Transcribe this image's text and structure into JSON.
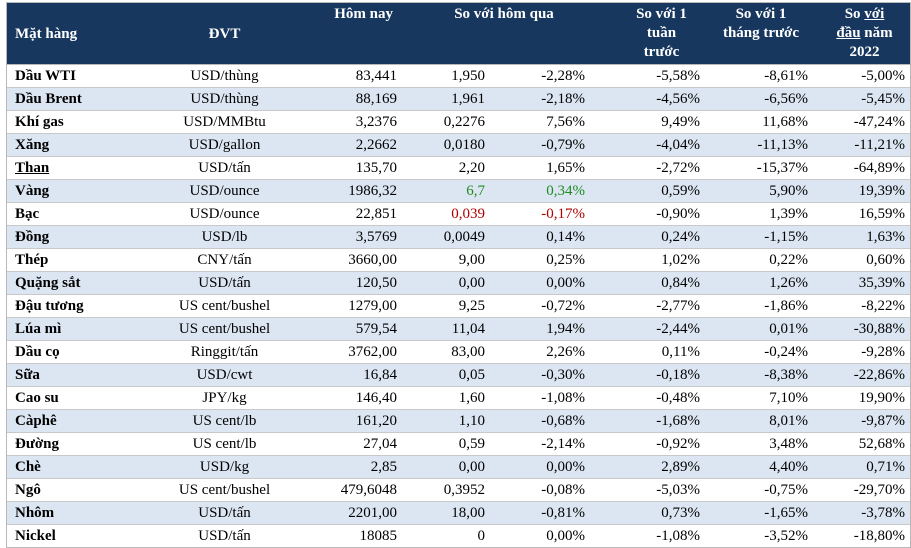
{
  "header": {
    "name": "Mặt hàng",
    "unit": "ĐVT",
    "today": "Hôm nay",
    "vs_prev": "So với hôm qua",
    "vs_week_line1": "So với 1",
    "vs_week_line2": "tuần",
    "vs_week_line3": "trước",
    "vs_month_line1": "So với 1",
    "vs_month_line2": "tháng trước",
    "vs_year_so": "So ",
    "vs_year_voi": "với",
    "vs_year_dau": "đầu",
    "vs_year_nam": " năm",
    "vs_year_line3": "2022"
  },
  "colors": {
    "header_bg": "#17375e",
    "alt_row_bg": "#dce6f2",
    "positive_highlight": "#1f8a1f",
    "negative_highlight": "#b00000"
  },
  "rows": [
    {
      "name": "Dầu WTI",
      "unit": "USD/thùng",
      "today": "83,441",
      "chg": "1,950",
      "pct": "-2,28%",
      "week": "-5,58%",
      "month": "-8,61%",
      "year": "-5,00%"
    },
    {
      "name": "Dầu Brent",
      "unit": "USD/thùng",
      "today": "88,169",
      "chg": "1,961",
      "pct": "-2,18%",
      "week": "-4,56%",
      "month": "-6,56%",
      "year": "-5,45%"
    },
    {
      "name": "Khí gas",
      "unit": "USD/MMBtu",
      "today": "3,2376",
      "chg": "0,2276",
      "pct": "7,56%",
      "week": "9,49%",
      "month": "11,68%",
      "year": "-47,24%"
    },
    {
      "name": "Xăng",
      "unit": "USD/gallon",
      "today": "2,2662",
      "chg": "0,0180",
      "pct": "-0,79%",
      "week": "-4,04%",
      "month": "-11,13%",
      "year": "-11,21%"
    },
    {
      "name": "Than",
      "unit": "USD/tấn",
      "today": "135,70",
      "chg": "2,20",
      "pct": "1,65%",
      "week": "-2,72%",
      "month": "-15,37%",
      "year": "-64,89%",
      "underline": true
    },
    {
      "name": "Vàng",
      "unit": "USD/ounce",
      "today": "1986,32",
      "chg": "6,7",
      "pct": "0,34%",
      "week": "0,59%",
      "month": "5,90%",
      "year": "19,39%",
      "highlight": "pos"
    },
    {
      "name": "Bạc",
      "unit": "USD/ounce",
      "today": "22,851",
      "chg": "0,039",
      "pct": "-0,17%",
      "week": "-0,90%",
      "month": "1,39%",
      "year": "16,59%",
      "highlight": "neg"
    },
    {
      "name": "Đồng",
      "unit": "USD/lb",
      "today": "3,5769",
      "chg": "0,0049",
      "pct": "0,14%",
      "week": "0,24%",
      "month": "-1,15%",
      "year": "1,63%"
    },
    {
      "name": "Thép",
      "unit": "CNY/tấn",
      "today": "3660,00",
      "chg": "9,00",
      "pct": "0,25%",
      "week": "1,02%",
      "month": "0,22%",
      "year": "0,60%"
    },
    {
      "name": "Quặng sắt",
      "unit": "USD/tấn",
      "today": "120,50",
      "chg": "0,00",
      "pct": "0,00%",
      "week": "0,84%",
      "month": "1,26%",
      "year": "35,39%"
    },
    {
      "name": "Đậu tương",
      "unit": "US cent/bushel",
      "today": "1279,00",
      "chg": "9,25",
      "pct": "-0,72%",
      "week": "-2,77%",
      "month": "-1,86%",
      "year": "-8,22%"
    },
    {
      "name": "Lúa mì",
      "unit": "US cent/bushel",
      "today": "579,54",
      "chg": "11,04",
      "pct": "1,94%",
      "week": "-2,44%",
      "month": "0,01%",
      "year": "-30,88%"
    },
    {
      "name": "Dầu cọ",
      "unit": "Ringgit/tấn",
      "today": "3762,00",
      "chg": "83,00",
      "pct": "2,26%",
      "week": "0,11%",
      "month": "-0,24%",
      "year": "-9,28%"
    },
    {
      "name": "Sữa",
      "unit": "USD/cwt",
      "today": "16,84",
      "chg": "0,05",
      "pct": "-0,30%",
      "week": "-0,18%",
      "month": "-8,38%",
      "year": "-22,86%"
    },
    {
      "name": "Cao su",
      "unit": "JPY/kg",
      "today": "146,40",
      "chg": "1,60",
      "pct": "-1,08%",
      "week": "-0,48%",
      "month": "7,10%",
      "year": "19,90%"
    },
    {
      "name": "Càphê",
      "unit": "US cent/lb",
      "today": "161,20",
      "chg": "1,10",
      "pct": "-0,68%",
      "week": "-1,68%",
      "month": "8,01%",
      "year": "-9,87%"
    },
    {
      "name": "Đường",
      "unit": "US cent/lb",
      "today": "27,04",
      "chg": "0,59",
      "pct": "-2,14%",
      "week": "-0,92%",
      "month": "3,48%",
      "year": "52,68%"
    },
    {
      "name": "Chè",
      "unit": "USD/kg",
      "today": "2,85",
      "chg": "0,00",
      "pct": "0,00%",
      "week": "2,89%",
      "month": "4,40%",
      "year": "0,71%"
    },
    {
      "name": "Ngô",
      "unit": "US cent/bushel",
      "today": "479,6048",
      "chg": "0,3952",
      "pct": "-0,08%",
      "week": "-5,03%",
      "month": "-0,75%",
      "year": "-29,70%"
    },
    {
      "name": "Nhôm",
      "unit": "USD/tấn",
      "today": "2201,00",
      "chg": "18,00",
      "pct": "-0,81%",
      "week": "0,73%",
      "month": "-1,65%",
      "year": "-3,78%"
    },
    {
      "name": "Nickel",
      "unit": "USD/tấn",
      "today": "18085",
      "chg": "0",
      "pct": "0,00%",
      "week": "-1,08%",
      "month": "-3,52%",
      "year": "-18,80%"
    }
  ]
}
